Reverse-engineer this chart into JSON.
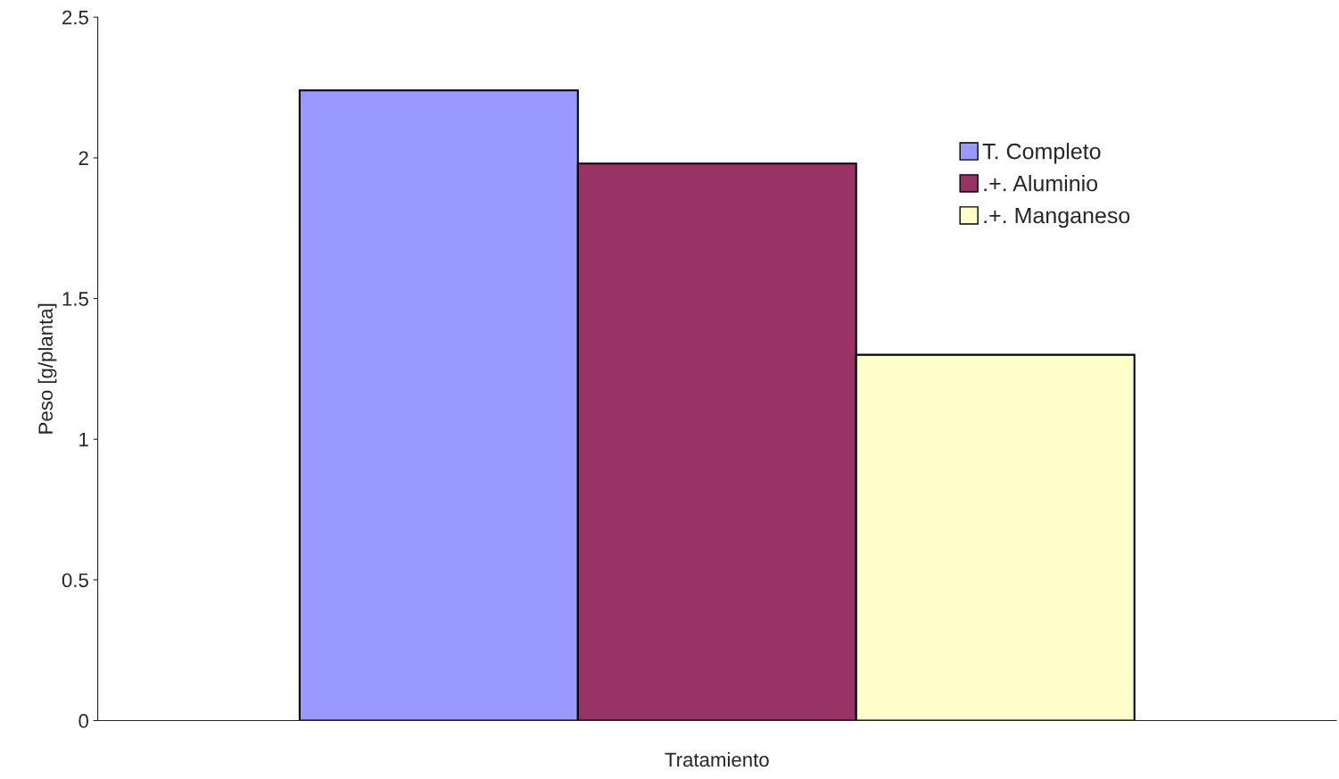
{
  "chart_data": {
    "type": "bar",
    "xlabel": "Tratamiento",
    "ylabel": "Peso [g/planta]",
    "categories": [
      null
    ],
    "series": [
      {
        "name": "T. Completo",
        "color": "#9999ff",
        "values": [
          2.24
        ]
      },
      {
        "name": ".+. Aluminio",
        "color": "#993366",
        "values": [
          1.98
        ]
      },
      {
        "name": ".+. Manganeso",
        "color": "#ffffcc",
        "values": [
          1.3
        ]
      }
    ],
    "ylim": [
      0,
      2.5
    ],
    "yticks": [
      0,
      0.5,
      1,
      1.5,
      2,
      2.5
    ],
    "grid": false,
    "legend": "top right"
  }
}
